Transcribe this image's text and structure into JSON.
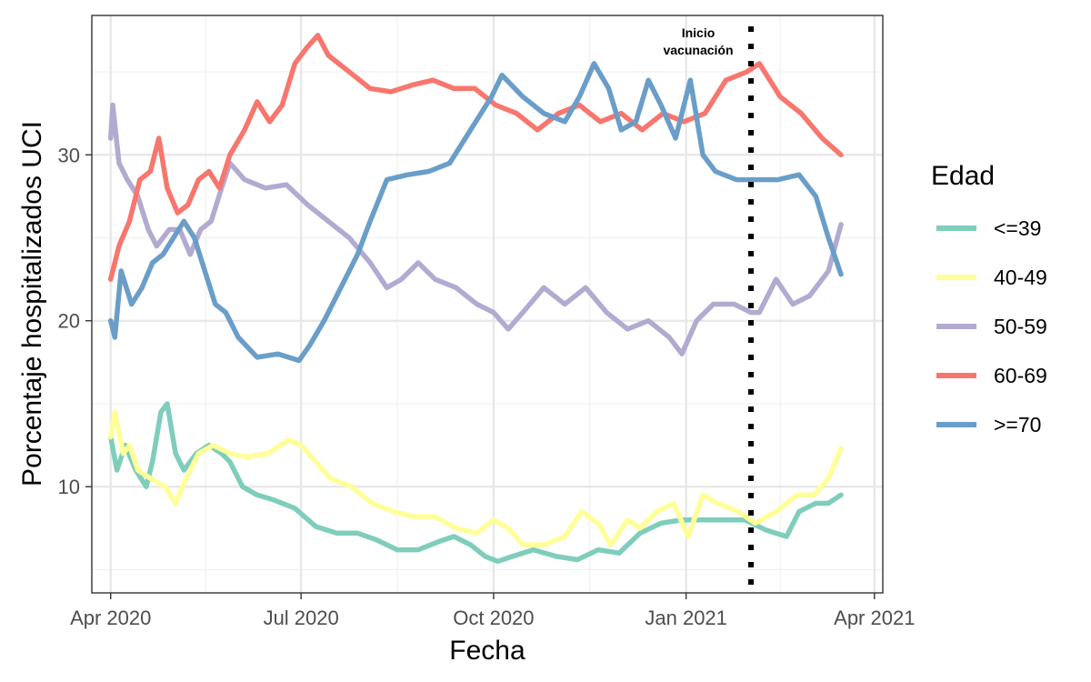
{
  "chart_data": {
    "type": "line",
    "xlabel": "Fecha",
    "ylabel": "Porcentaje hospitalizados UCI",
    "x_ticks": [
      "2020-04-01",
      "2020-07-01",
      "2020-10-01",
      "2021-01-01",
      "2021-04-01"
    ],
    "x_tick_labels": [
      "Apr 2020",
      "Jul 2020",
      "Oct 2020",
      "Jan 2021",
      "Apr 2021"
    ],
    "xlim": [
      "2020-03-23",
      "2021-04-05"
    ],
    "y_ticks": [
      10,
      20,
      30
    ],
    "ylim": [
      3.6,
      38.4
    ],
    "grid": true,
    "legend": {
      "title": "Edad",
      "position": "right"
    },
    "annotation": {
      "x": "2021-02-01",
      "lines": [
        "Inicio",
        "vacunación"
      ],
      "style": "dotted-vertical"
    },
    "series": [
      {
        "name": "<=39",
        "color": "#7fcdbb",
        "points": [
          [
            "2020-04-01",
            13
          ],
          [
            "2020-04-04",
            11
          ],
          [
            "2020-04-08",
            12.5
          ],
          [
            "2020-04-13",
            11
          ],
          [
            "2020-04-18",
            10
          ],
          [
            "2020-04-21",
            11.5
          ],
          [
            "2020-04-25",
            14.5
          ],
          [
            "2020-04-28",
            15
          ],
          [
            "2020-05-02",
            12
          ],
          [
            "2020-05-06",
            11
          ],
          [
            "2020-05-12",
            12
          ],
          [
            "2020-05-18",
            12.5
          ],
          [
            "2020-05-24",
            12
          ],
          [
            "2020-05-28",
            11.5
          ],
          [
            "2020-06-03",
            10
          ],
          [
            "2020-06-10",
            9.5
          ],
          [
            "2020-06-18",
            9.2
          ],
          [
            "2020-06-28",
            8.7
          ],
          [
            "2020-07-08",
            7.6
          ],
          [
            "2020-07-18",
            7.2
          ],
          [
            "2020-07-28",
            7.2
          ],
          [
            "2020-08-06",
            6.8
          ],
          [
            "2020-08-16",
            6.2
          ],
          [
            "2020-08-26",
            6.2
          ],
          [
            "2020-09-05",
            6.7
          ],
          [
            "2020-09-12",
            7.0
          ],
          [
            "2020-09-20",
            6.5
          ],
          [
            "2020-09-27",
            5.8
          ],
          [
            "2020-10-03",
            5.5
          ],
          [
            "2020-10-10",
            5.8
          ],
          [
            "2020-10-20",
            6.2
          ],
          [
            "2020-10-31",
            5.8
          ],
          [
            "2020-11-10",
            5.6
          ],
          [
            "2020-11-20",
            6.2
          ],
          [
            "2020-11-30",
            6.0
          ],
          [
            "2020-12-10",
            7.2
          ],
          [
            "2020-12-20",
            7.8
          ],
          [
            "2020-12-30",
            8.0
          ],
          [
            "2021-01-09",
            8.0
          ],
          [
            "2021-01-19",
            8.0
          ],
          [
            "2021-01-29",
            8.0
          ],
          [
            "2021-02-08",
            7.4
          ],
          [
            "2021-02-18",
            7.0
          ],
          [
            "2021-02-24",
            8.5
          ],
          [
            "2021-03-04",
            9.0
          ],
          [
            "2021-03-10",
            9.0
          ],
          [
            "2021-03-16",
            9.5
          ]
        ]
      },
      {
        "name": "40-49",
        "color": "#ffff99",
        "points": [
          [
            "2020-04-01",
            13
          ],
          [
            "2020-04-03",
            14.5
          ],
          [
            "2020-04-07",
            12
          ],
          [
            "2020-04-10",
            12.5
          ],
          [
            "2020-04-14",
            11
          ],
          [
            "2020-04-20",
            10.5
          ],
          [
            "2020-04-27",
            10
          ],
          [
            "2020-05-02",
            9
          ],
          [
            "2020-05-07",
            10.5
          ],
          [
            "2020-05-13",
            12
          ],
          [
            "2020-05-20",
            12.5
          ],
          [
            "2020-05-28",
            12
          ],
          [
            "2020-06-05",
            11.8
          ],
          [
            "2020-06-15",
            12.0
          ],
          [
            "2020-06-25",
            12.8
          ],
          [
            "2020-07-01",
            12.5
          ],
          [
            "2020-07-08",
            11.5
          ],
          [
            "2020-07-15",
            10.5
          ],
          [
            "2020-07-25",
            10.0
          ],
          [
            "2020-08-04",
            9.0
          ],
          [
            "2020-08-14",
            8.5
          ],
          [
            "2020-08-24",
            8.2
          ],
          [
            "2020-09-03",
            8.2
          ],
          [
            "2020-09-13",
            7.5
          ],
          [
            "2020-09-23",
            7.2
          ],
          [
            "2020-10-01",
            8.0
          ],
          [
            "2020-10-08",
            7.5
          ],
          [
            "2020-10-15",
            6.5
          ],
          [
            "2020-10-25",
            6.5
          ],
          [
            "2020-11-04",
            7.0
          ],
          [
            "2020-11-12",
            8.5
          ],
          [
            "2020-11-20",
            7.8
          ],
          [
            "2020-11-26",
            6.5
          ],
          [
            "2020-12-04",
            8.0
          ],
          [
            "2020-12-10",
            7.5
          ],
          [
            "2020-12-18",
            8.5
          ],
          [
            "2020-12-26",
            9.0
          ],
          [
            "2021-01-02",
            7.0
          ],
          [
            "2021-01-09",
            9.5
          ],
          [
            "2021-01-16",
            9.0
          ],
          [
            "2021-01-26",
            8.5
          ],
          [
            "2021-02-03",
            7.8
          ],
          [
            "2021-02-13",
            8.5
          ],
          [
            "2021-02-23",
            9.5
          ],
          [
            "2021-03-03",
            9.5
          ],
          [
            "2021-03-10",
            10.5
          ],
          [
            "2021-03-16",
            12.3
          ]
        ]
      },
      {
        "name": "50-59",
        "color": "#b3aad1",
        "points": [
          [
            "2020-04-01",
            31
          ],
          [
            "2020-04-02",
            33
          ],
          [
            "2020-04-05",
            29.5
          ],
          [
            "2020-04-09",
            28.5
          ],
          [
            "2020-04-14",
            27.5
          ],
          [
            "2020-04-19",
            25.5
          ],
          [
            "2020-04-23",
            24.5
          ],
          [
            "2020-04-29",
            25.5
          ],
          [
            "2020-05-04",
            25.5
          ],
          [
            "2020-05-09",
            24
          ],
          [
            "2020-05-14",
            25.5
          ],
          [
            "2020-05-19",
            26
          ],
          [
            "2020-05-24",
            28
          ],
          [
            "2020-05-28",
            29.5
          ],
          [
            "2020-06-04",
            28.5
          ],
          [
            "2020-06-14",
            28.0
          ],
          [
            "2020-06-24",
            28.2
          ],
          [
            "2020-07-04",
            27.0
          ],
          [
            "2020-07-14",
            26.0
          ],
          [
            "2020-07-24",
            25.0
          ],
          [
            "2020-08-03",
            23.5
          ],
          [
            "2020-08-11",
            22.0
          ],
          [
            "2020-08-18",
            22.5
          ],
          [
            "2020-08-26",
            23.5
          ],
          [
            "2020-09-03",
            22.5
          ],
          [
            "2020-09-13",
            22.0
          ],
          [
            "2020-09-23",
            21.0
          ],
          [
            "2020-10-01",
            20.5
          ],
          [
            "2020-10-08",
            19.5
          ],
          [
            "2020-10-15",
            20.5
          ],
          [
            "2020-10-25",
            22.0
          ],
          [
            "2020-11-04",
            21.0
          ],
          [
            "2020-11-14",
            22.0
          ],
          [
            "2020-11-24",
            20.5
          ],
          [
            "2020-12-04",
            19.5
          ],
          [
            "2020-12-14",
            20.0
          ],
          [
            "2020-12-24",
            19.0
          ],
          [
            "2020-12-30",
            18.0
          ],
          [
            "2021-01-06",
            20.0
          ],
          [
            "2021-01-14",
            21.0
          ],
          [
            "2021-01-24",
            21.0
          ],
          [
            "2021-02-01",
            20.5
          ],
          [
            "2021-02-05",
            20.5
          ],
          [
            "2021-02-13",
            22.5
          ],
          [
            "2021-02-21",
            21.0
          ],
          [
            "2021-03-01",
            21.5
          ],
          [
            "2021-03-10",
            23.0
          ],
          [
            "2021-03-16",
            25.8
          ]
        ]
      },
      {
        "name": "60-69",
        "color": "#f8766d",
        "points": [
          [
            "2020-04-01",
            22.5
          ],
          [
            "2020-04-05",
            24.5
          ],
          [
            "2020-04-10",
            26
          ],
          [
            "2020-04-15",
            28.5
          ],
          [
            "2020-04-20",
            29
          ],
          [
            "2020-04-24",
            31
          ],
          [
            "2020-04-28",
            28
          ],
          [
            "2020-05-03",
            26.5
          ],
          [
            "2020-05-08",
            27
          ],
          [
            "2020-05-13",
            28.5
          ],
          [
            "2020-05-18",
            29
          ],
          [
            "2020-05-23",
            28
          ],
          [
            "2020-05-28",
            30
          ],
          [
            "2020-06-04",
            31.5
          ],
          [
            "2020-06-10",
            33.2
          ],
          [
            "2020-06-16",
            32.0
          ],
          [
            "2020-06-22",
            33.0
          ],
          [
            "2020-06-28",
            35.5
          ],
          [
            "2020-07-04",
            36.5
          ],
          [
            "2020-07-09",
            37.2
          ],
          [
            "2020-07-14",
            36.0
          ],
          [
            "2020-07-24",
            35.0
          ],
          [
            "2020-08-03",
            34.0
          ],
          [
            "2020-08-13",
            33.8
          ],
          [
            "2020-08-23",
            34.2
          ],
          [
            "2020-09-02",
            34.5
          ],
          [
            "2020-09-12",
            34.0
          ],
          [
            "2020-09-22",
            34.0
          ],
          [
            "2020-10-02",
            33.0
          ],
          [
            "2020-10-12",
            32.5
          ],
          [
            "2020-10-22",
            31.5
          ],
          [
            "2020-11-01",
            32.5
          ],
          [
            "2020-11-11",
            33.0
          ],
          [
            "2020-11-21",
            32.0
          ],
          [
            "2020-12-01",
            32.5
          ],
          [
            "2020-12-11",
            31.5
          ],
          [
            "2020-12-21",
            32.5
          ],
          [
            "2020-12-31",
            32.0
          ],
          [
            "2021-01-10",
            32.5
          ],
          [
            "2021-01-20",
            34.5
          ],
          [
            "2021-01-30",
            35.0
          ],
          [
            "2021-02-05",
            35.5
          ],
          [
            "2021-02-15",
            33.5
          ],
          [
            "2021-02-25",
            32.5
          ],
          [
            "2021-03-07",
            31.0
          ],
          [
            "2021-03-16",
            30.0
          ]
        ]
      },
      {
        "name": ">=70",
        "color": "#6a9ec9",
        "points": [
          [
            "2020-04-01",
            20
          ],
          [
            "2020-04-03",
            19
          ],
          [
            "2020-04-06",
            23
          ],
          [
            "2020-04-11",
            21
          ],
          [
            "2020-04-16",
            22
          ],
          [
            "2020-04-21",
            23.5
          ],
          [
            "2020-04-26",
            24
          ],
          [
            "2020-05-01",
            25
          ],
          [
            "2020-05-06",
            26
          ],
          [
            "2020-05-11",
            25
          ],
          [
            "2020-05-16",
            23
          ],
          [
            "2020-05-21",
            21
          ],
          [
            "2020-05-26",
            20.5
          ],
          [
            "2020-06-01",
            19.0
          ],
          [
            "2020-06-10",
            17.8
          ],
          [
            "2020-06-20",
            18.0
          ],
          [
            "2020-06-30",
            17.6
          ],
          [
            "2020-07-05",
            18.5
          ],
          [
            "2020-07-12",
            20.0
          ],
          [
            "2020-07-20",
            22.0
          ],
          [
            "2020-07-28",
            24.0
          ],
          [
            "2020-08-03",
            26.0
          ],
          [
            "2020-08-11",
            28.5
          ],
          [
            "2020-08-21",
            28.8
          ],
          [
            "2020-08-31",
            29.0
          ],
          [
            "2020-09-10",
            29.5
          ],
          [
            "2020-09-20",
            31.5
          ],
          [
            "2020-09-30",
            33.5
          ],
          [
            "2020-10-05",
            34.8
          ],
          [
            "2020-10-15",
            33.5
          ],
          [
            "2020-10-25",
            32.5
          ],
          [
            "2020-11-04",
            32.0
          ],
          [
            "2020-11-11",
            33.5
          ],
          [
            "2020-11-18",
            35.5
          ],
          [
            "2020-11-25",
            34.0
          ],
          [
            "2020-12-01",
            31.5
          ],
          [
            "2020-12-08",
            32.0
          ],
          [
            "2020-12-14",
            34.5
          ],
          [
            "2020-12-20",
            33.0
          ],
          [
            "2020-12-27",
            31.0
          ],
          [
            "2021-01-03",
            34.5
          ],
          [
            "2021-01-09",
            30.0
          ],
          [
            "2021-01-15",
            29.0
          ],
          [
            "2021-01-25",
            28.5
          ],
          [
            "2021-02-04",
            28.5
          ],
          [
            "2021-02-14",
            28.5
          ],
          [
            "2021-02-24",
            28.8
          ],
          [
            "2021-03-04",
            27.5
          ],
          [
            "2021-03-10",
            25.0
          ],
          [
            "2021-03-16",
            22.8
          ]
        ]
      }
    ]
  }
}
